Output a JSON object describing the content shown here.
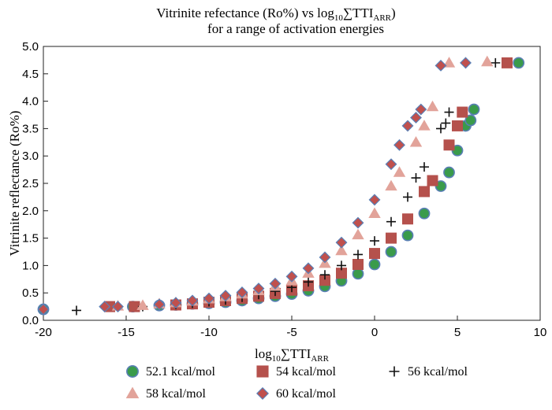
{
  "chart_data": {
    "type": "scatter",
    "title_line1_main": "Vitrinite refectance (Ro%) vs log",
    "title_line1_sub": "10",
    "title_line1_sym": "∑TTI",
    "title_line1_sub2": "ARR",
    "title_line1_close": ")",
    "title_line2": "for a range of activation energies",
    "ylabel": "Vitrinite reflectance (Ro%)",
    "xlabel_main": "log",
    "xlabel_sub": "10",
    "xlabel_sym": "∑TTI",
    "xlabel_sub2": "ARR",
    "xlim": [
      -20,
      10
    ],
    "ylim": [
      0,
      5
    ],
    "x_ticks": [
      "-20",
      "-15",
      "-10",
      "-5",
      "0",
      "5",
      "10"
    ],
    "y_ticks": [
      "0.0",
      "0.5",
      "1.0",
      "1.5",
      "2.0",
      "2.5",
      "3.0",
      "3.5",
      "4.0",
      "4.5",
      "5.0"
    ],
    "grid": false,
    "legend_position": "bottom",
    "series": [
      {
        "name": "52.1 kcal/mol",
        "marker": "circle",
        "color": "#3a9b4b",
        "edge": "#5a7fb5",
        "points": [
          [
            -20,
            0.2
          ],
          [
            -14.6,
            0.25
          ],
          [
            -13,
            0.27
          ],
          [
            -12,
            0.28
          ],
          [
            -11,
            0.3
          ],
          [
            -10,
            0.31
          ],
          [
            -9,
            0.33
          ],
          [
            -8,
            0.36
          ],
          [
            -7,
            0.4
          ],
          [
            -6,
            0.44
          ],
          [
            -5,
            0.48
          ],
          [
            -4,
            0.54
          ],
          [
            -3,
            0.62
          ],
          [
            -2,
            0.72
          ],
          [
            -1,
            0.85
          ],
          [
            0,
            1.02
          ],
          [
            1,
            1.25
          ],
          [
            2,
            1.55
          ],
          [
            3,
            1.95
          ],
          [
            4,
            2.45
          ],
          [
            4.5,
            2.7
          ],
          [
            5,
            3.1
          ],
          [
            5.5,
            3.55
          ],
          [
            5.8,
            3.65
          ],
          [
            6,
            3.85
          ],
          [
            8.7,
            4.7
          ]
        ]
      },
      {
        "name": "54 kcal/mol",
        "marker": "square",
        "color": "#b5514c",
        "edge": "#b5514c",
        "points": [
          [
            -16,
            0.25
          ],
          [
            -14.5,
            0.25
          ],
          [
            -12,
            0.28
          ],
          [
            -11,
            0.3
          ],
          [
            -10,
            0.33
          ],
          [
            -9,
            0.36
          ],
          [
            -8,
            0.4
          ],
          [
            -7,
            0.44
          ],
          [
            -6,
            0.49
          ],
          [
            -5,
            0.55
          ],
          [
            -4,
            0.63
          ],
          [
            -3,
            0.73
          ],
          [
            -2,
            0.86
          ],
          [
            -1,
            1.02
          ],
          [
            0,
            1.22
          ],
          [
            1,
            1.5
          ],
          [
            2,
            1.85
          ],
          [
            3,
            2.35
          ],
          [
            3.5,
            2.55
          ],
          [
            4.5,
            3.2
          ],
          [
            5,
            3.55
          ],
          [
            5.3,
            3.8
          ],
          [
            8,
            4.7
          ]
        ]
      },
      {
        "name": "56 kcal/mol",
        "marker": "plus",
        "color": "#111111",
        "edge": "#111111",
        "points": [
          [
            -18,
            0.18
          ],
          [
            -14,
            0.25
          ],
          [
            -12,
            0.29
          ],
          [
            -11,
            0.31
          ],
          [
            -10,
            0.34
          ],
          [
            -9,
            0.37
          ],
          [
            -8,
            0.42
          ],
          [
            -7,
            0.47
          ],
          [
            -6,
            0.53
          ],
          [
            -5,
            0.6
          ],
          [
            -4,
            0.7
          ],
          [
            -3,
            0.83
          ],
          [
            -2,
            1.0
          ],
          [
            -1,
            1.2
          ],
          [
            0,
            1.45
          ],
          [
            1,
            1.8
          ],
          [
            2,
            2.25
          ],
          [
            2.5,
            2.6
          ],
          [
            3,
            2.8
          ],
          [
            4,
            3.5
          ],
          [
            4.3,
            3.6
          ],
          [
            4.5,
            3.8
          ],
          [
            7.3,
            4.7
          ]
        ]
      },
      {
        "name": "58 kcal/mol",
        "marker": "triangle",
        "color": "#e2a39a",
        "edge": "#e2a39a",
        "points": [
          [
            -15.5,
            0.26
          ],
          [
            -14,
            0.27
          ],
          [
            -13,
            0.3
          ],
          [
            -12,
            0.32
          ],
          [
            -11,
            0.35
          ],
          [
            -10,
            0.39
          ],
          [
            -9,
            0.43
          ],
          [
            -8,
            0.48
          ],
          [
            -7,
            0.54
          ],
          [
            -6,
            0.62
          ],
          [
            -5,
            0.72
          ],
          [
            -4,
            0.86
          ],
          [
            -3,
            1.04
          ],
          [
            -2,
            1.27
          ],
          [
            -1,
            1.56
          ],
          [
            0,
            1.95
          ],
          [
            1,
            2.45
          ],
          [
            1.5,
            2.7
          ],
          [
            2.5,
            3.25
          ],
          [
            3,
            3.55
          ],
          [
            3.5,
            3.9
          ],
          [
            4.5,
            4.7
          ],
          [
            6.8,
            4.72
          ]
        ]
      },
      {
        "name": "60 kcal/mol",
        "marker": "diamond",
        "color": "#c0504d",
        "edge": "#5a7fb5",
        "points": [
          [
            -20,
            0.2
          ],
          [
            -16.3,
            0.25
          ],
          [
            -15.5,
            0.25
          ],
          [
            -13,
            0.29
          ],
          [
            -12,
            0.32
          ],
          [
            -11,
            0.36
          ],
          [
            -10,
            0.4
          ],
          [
            -9,
            0.45
          ],
          [
            -8,
            0.51
          ],
          [
            -7,
            0.58
          ],
          [
            -6,
            0.67
          ],
          [
            -5,
            0.8
          ],
          [
            -4,
            0.95
          ],
          [
            -3,
            1.15
          ],
          [
            -2,
            1.42
          ],
          [
            -1,
            1.78
          ],
          [
            0,
            2.2
          ],
          [
            1,
            2.85
          ],
          [
            1.5,
            3.2
          ],
          [
            2,
            3.55
          ],
          [
            2.5,
            3.7
          ],
          [
            2.8,
            3.85
          ],
          [
            4,
            4.65
          ],
          [
            5.5,
            4.7
          ]
        ]
      }
    ]
  }
}
